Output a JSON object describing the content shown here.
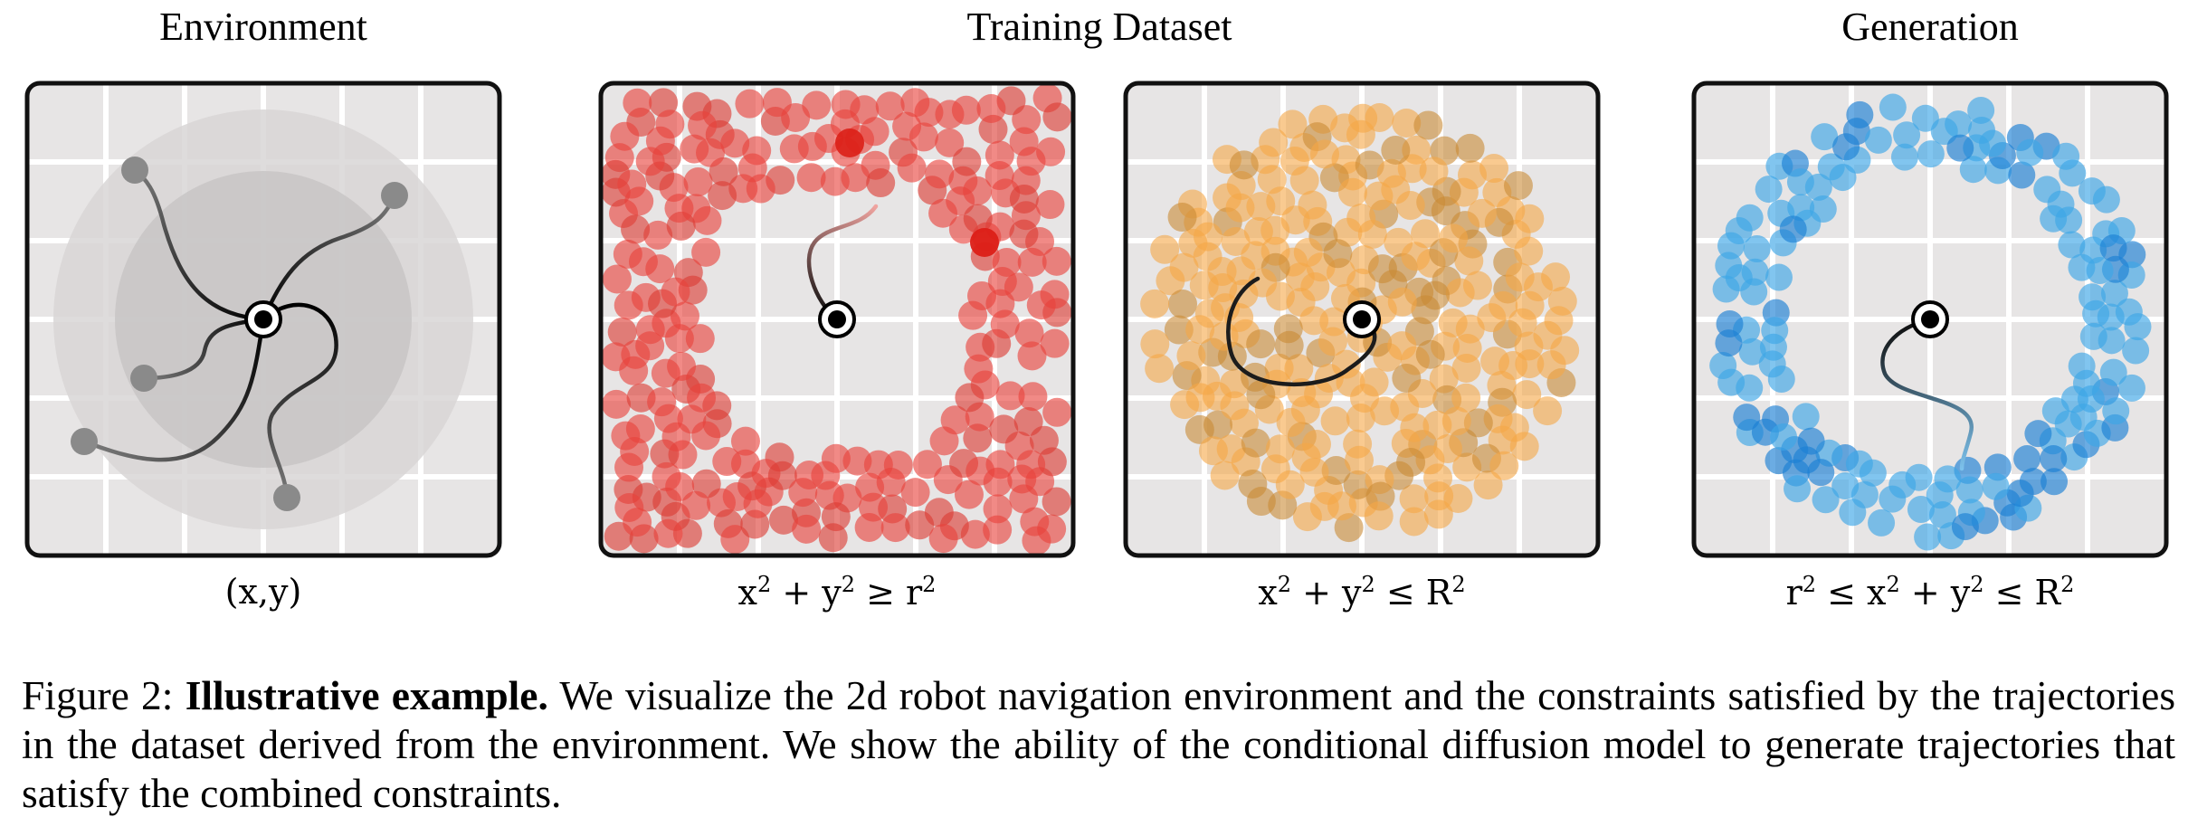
{
  "headers": {
    "environment": "Environment",
    "training": "Training Dataset",
    "generation": "Generation"
  },
  "labels": {
    "env": "(x,y)",
    "outer": {
      "a": "x",
      "b": " + y",
      "c": " ≥ r",
      "sup": "2"
    },
    "inner": {
      "a": "x",
      "b": " + y",
      "c": " ≤ R",
      "sup": "2"
    },
    "ring": {
      "pre": "r",
      "a": " ≤ x",
      "b": " + y",
      "c": " ≤ R",
      "sup": "2"
    }
  },
  "caption": {
    "figure_label": "Figure 2:",
    "bold_title": "Illustrative example.",
    "text": "We visualize the 2d robot navigation environment and the constraints satisfied by the trajectories in the dataset derived from the environment. We show the ability of the conditional diffusion model to generate trajectories that satisfy the combined constraints."
  },
  "colors": {
    "grid_bg": "#e7e5e5",
    "grid_line": "#ffffff",
    "frame": "#111111",
    "outer_points": "#e8423c",
    "outer_strong": "#dc1f17",
    "inner_points": "#f5a746",
    "inner_dark": "#c98a35",
    "ring_points": "#3ea6e6",
    "ring_dark": "#1c7fd4",
    "trajectory": "#1c1c1c",
    "env_circle_outer": "#d8d6d6",
    "env_circle_inner": "#c8c6c6"
  }
}
